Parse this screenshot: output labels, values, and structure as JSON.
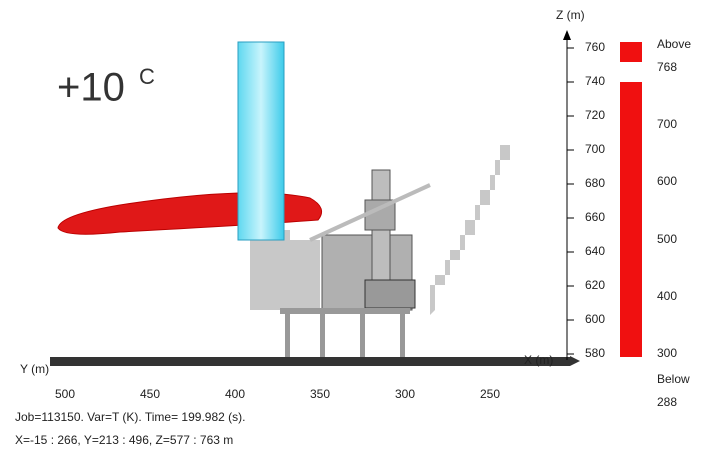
{
  "annotation": {
    "main": "+10",
    "sup": "C"
  },
  "z_axis": {
    "label": "Z (m)",
    "ticks": [
      "760",
      "740",
      "720",
      "700",
      "680",
      "660",
      "640",
      "620",
      "600",
      "580"
    ]
  },
  "y_axis": {
    "label": "Y (m)",
    "ticks": [
      "500",
      "450",
      "400",
      "350",
      "300",
      "250"
    ]
  },
  "x_axis": {
    "label": "X (m)"
  },
  "legend": {
    "labels": [
      "Above",
      "768",
      "700",
      "600",
      "500",
      "400",
      "300",
      "Below",
      "288"
    ]
  },
  "footer": {
    "line1": "Job=113150.  Var=T (K). Time= 199.982 (s).",
    "line2": "X=-15 : 266, Y=213 : 496, Z=577 : 763 m"
  }
}
